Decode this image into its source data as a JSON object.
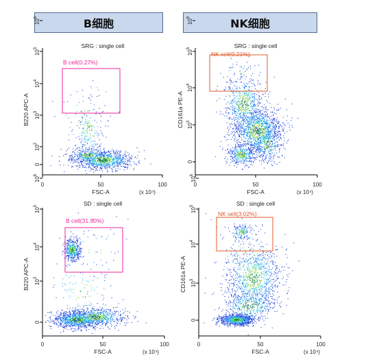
{
  "headers": {
    "b_cell": "B细胞",
    "nk_cell": "NK细胞"
  },
  "colors": {
    "b_gate": "#e8259a",
    "nk_gate": "#e0582a",
    "header_bg": "#c9d8ec",
    "header_border": "#4f6a8f"
  },
  "chart_data": [
    {
      "type": "scatter",
      "title": "SRG : single cell",
      "xlabel": "FSC-A",
      "ylabel": "B220 APC-A",
      "x_unit": "(x 10⁴)",
      "xlim": [
        0,
        100
      ],
      "x_ticks": [
        "0",
        "50",
        "100"
      ],
      "y_ticks": [
        {
          "base": "0",
          "exp": ""
        },
        {
          "base": "10",
          "exp": "2"
        },
        {
          "base": "10",
          "exp": "3"
        },
        {
          "base": "10",
          "exp": "4"
        },
        {
          "base": "10",
          "exp": "5"
        },
        {
          "base": "10",
          "exp": "6"
        }
      ],
      "gate": {
        "label": "B cell(0.27%)",
        "color": "#e8259a"
      }
    },
    {
      "type": "scatter",
      "title": "SRG : single cell",
      "xlabel": "FSC-A",
      "ylabel": "CD161a PE-A",
      "x_unit": "(x 10⁴)",
      "xlim": [
        0,
        100
      ],
      "x_ticks": [
        "0",
        "50",
        "100"
      ],
      "y_ticks": [
        {
          "base": "0",
          "exp": ""
        },
        {
          "base": "10",
          "exp": "3"
        },
        {
          "base": "10",
          "exp": "4"
        },
        {
          "base": "10",
          "exp": "5"
        },
        {
          "base": "10",
          "exp": "6"
        }
      ],
      "gate": {
        "label": "NK cell(0.21%)",
        "color": "#e0582a"
      }
    },
    {
      "type": "scatter",
      "title": "SD : single cell",
      "xlabel": "FSC-A",
      "ylabel": "B220 APC-A",
      "x_unit": "(x 10⁴)",
      "xlim": [
        0,
        100
      ],
      "x_ticks": [
        "0",
        "50",
        "100"
      ],
      "y_ticks": [
        {
          "base": "0",
          "exp": ""
        },
        {
          "base": "10",
          "exp": "3"
        },
        {
          "base": "10",
          "exp": "4"
        },
        {
          "base": "10",
          "exp": "5"
        },
        {
          "base": "10",
          "exp": "6"
        }
      ],
      "gate": {
        "label": "B cell(31.90%)",
        "color": "#e8259a"
      }
    },
    {
      "type": "scatter",
      "title": "SD : single cell",
      "xlabel": "FSC-A",
      "ylabel": "CD161a PE-A",
      "x_unit": "(x 10⁴)",
      "xlim": [
        0,
        100
      ],
      "x_ticks": [
        "0",
        "50",
        "100"
      ],
      "y_ticks": [
        {
          "base": "0",
          "exp": ""
        },
        {
          "base": "10",
          "exp": "3"
        },
        {
          "base": "10",
          "exp": "4"
        },
        {
          "base": "10",
          "exp": "5"
        },
        {
          "base": "10",
          "exp": "6"
        }
      ],
      "gate": {
        "label": "NK cell(3.02%)",
        "color": "#e0582a"
      }
    }
  ]
}
